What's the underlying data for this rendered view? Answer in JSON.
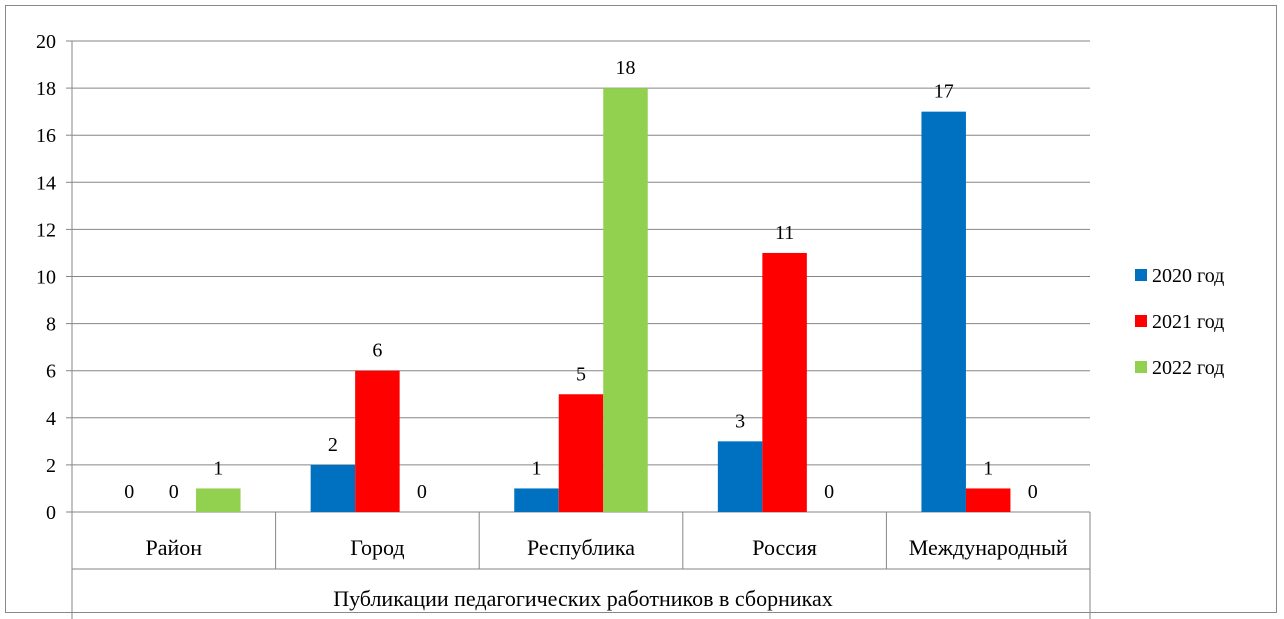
{
  "chart_data": {
    "type": "bar",
    "categories": [
      "Район",
      "Город",
      "Республика",
      "Россия",
      "Международный"
    ],
    "group_label": "Публикации педагогических работников  в сборниках",
    "series": [
      {
        "name": "2020 год",
        "color": "#0070C0",
        "values": [
          0,
          2,
          1,
          3,
          17
        ]
      },
      {
        "name": "2021 год",
        "color": "#FF0000",
        "values": [
          0,
          6,
          5,
          11,
          1
        ]
      },
      {
        "name": "2022 год",
        "color": "#92D050",
        "values": [
          1,
          0,
          18,
          0,
          0
        ]
      }
    ],
    "ylim": [
      0,
      20
    ],
    "yticks": [
      "0",
      "2",
      "4",
      "6",
      "8",
      "10",
      "12",
      "14",
      "16",
      "18",
      "20"
    ],
    "grid": true,
    "legend_position": "right",
    "data_labels": true
  }
}
